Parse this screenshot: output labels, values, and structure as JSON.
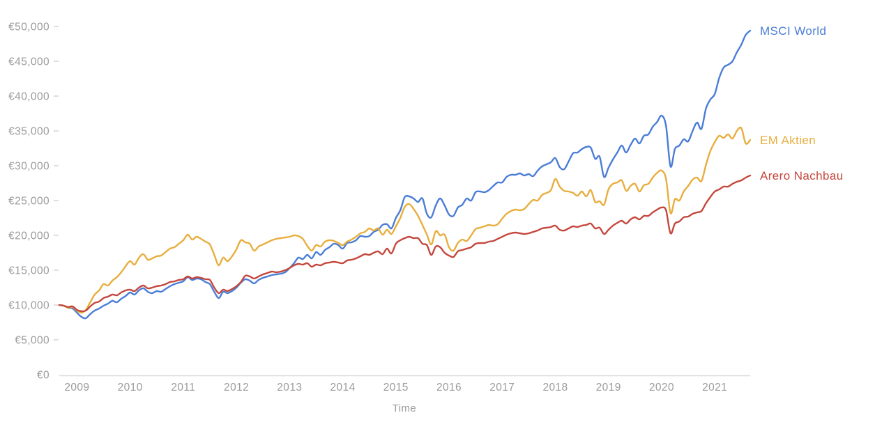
{
  "page": {
    "background": "#ffffff"
  },
  "colors": {
    "axis_line": "#dcdcdc",
    "tick_dash": "#d0d0d0",
    "tick_label_text": "#9b9b9b",
    "axis_title_text": "#9b9b9b"
  },
  "chart_data": {
    "type": "line",
    "title": "",
    "xlabel": "Time",
    "ylabel": "",
    "frequency": "monthly",
    "x_start_month": "2008-09",
    "x_end_month": "2021-09",
    "ylim": [
      0,
      50000
    ],
    "y_tick_interval": 5000,
    "grid": false,
    "legend_position": "labels-at-line-ends-right",
    "currency": "EUR",
    "y_tick_labels": [
      "€0",
      "€5,000",
      "€10,000",
      "€15,000",
      "€20,000",
      "€25,000",
      "€30,000",
      "€35,000",
      "€40,000",
      "€45,000",
      "€50,000"
    ],
    "x_tick_labels": [
      "2009",
      "2010",
      "2011",
      "2012",
      "2013",
      "2014",
      "2015",
      "2016",
      "2017",
      "2018",
      "2019",
      "2020",
      "2021"
    ],
    "series": [
      {
        "name": "MSCI World",
        "color": "#4a7dd6",
        "values": [
          10000,
          9900,
          9600,
          9500,
          8900,
          8300,
          8100,
          8700,
          9200,
          9500,
          9900,
          10200,
          10600,
          10400,
          10900,
          11300,
          11800,
          11500,
          12100,
          12400,
          11900,
          11700,
          12000,
          11900,
          12300,
          12700,
          13000,
          13200,
          13400,
          14000,
          13600,
          13800,
          13700,
          13300,
          13000,
          11900,
          11000,
          11900,
          11700,
          12000,
          12500,
          13200,
          13700,
          13500,
          13100,
          13600,
          13900,
          14100,
          14300,
          14400,
          14500,
          14700,
          15300,
          16000,
          16800,
          16600,
          17200,
          16700,
          17600,
          17200,
          17900,
          18300,
          18800,
          18600,
          18100,
          18900,
          19000,
          19300,
          19900,
          19800,
          19900,
          20500,
          20800,
          21500,
          21600,
          21000,
          22500,
          23600,
          25500,
          25600,
          25300,
          24800,
          25300,
          23100,
          22600,
          24300,
          25300,
          24300,
          23000,
          22800,
          24000,
          24400,
          25300,
          25000,
          26200,
          26300,
          26200,
          26500,
          27100,
          27600,
          27600,
          28400,
          28700,
          28700,
          28900,
          28600,
          28800,
          28500,
          29300,
          29900,
          30200,
          30500,
          31100,
          29800,
          29500,
          30600,
          31800,
          31900,
          32400,
          32700,
          32600,
          31000,
          31300,
          28400,
          29700,
          30900,
          31900,
          32900,
          31900,
          33000,
          33900,
          33200,
          34300,
          34500,
          35600,
          36300,
          37200,
          35700,
          29900,
          32400,
          32900,
          33800,
          33500,
          35000,
          36200,
          35300,
          38200,
          39500,
          40300,
          42600,
          44100,
          44500,
          45000,
          46300,
          47400,
          48800,
          49400
        ]
      },
      {
        "name": "EM Aktien",
        "color": "#e7ae3d",
        "values": [
          10000,
          9900,
          9600,
          9700,
          9200,
          8900,
          9300,
          10400,
          11500,
          12100,
          13000,
          12800,
          13500,
          14000,
          14700,
          15600,
          16300,
          15800,
          16800,
          17300,
          16500,
          16700,
          17000,
          17100,
          17600,
          18100,
          18300,
          18800,
          19300,
          20100,
          19400,
          19800,
          19500,
          19100,
          18700,
          17200,
          15700,
          16800,
          16300,
          17000,
          18000,
          19300,
          19000,
          18800,
          17800,
          18400,
          18700,
          19000,
          19300,
          19500,
          19600,
          19700,
          19800,
          20000,
          19900,
          19500,
          18500,
          17800,
          18600,
          18400,
          19100,
          19300,
          19200,
          18900,
          18600,
          19100,
          19400,
          19800,
          20300,
          20500,
          21000,
          20700,
          21000,
          20100,
          20800,
          20200,
          21300,
          22500,
          24100,
          24500,
          23800,
          22800,
          21500,
          20100,
          18700,
          20600,
          20000,
          20100,
          18300,
          17800,
          18900,
          19400,
          19200,
          20000,
          20900,
          21100,
          21300,
          21500,
          21400,
          21600,
          22400,
          23100,
          23500,
          23700,
          23600,
          23800,
          24500,
          25100,
          25000,
          25800,
          26100,
          26500,
          28100,
          27000,
          26400,
          26300,
          26100,
          25700,
          26300,
          25600,
          26500,
          24800,
          24900,
          24400,
          26600,
          27400,
          27600,
          27900,
          26400,
          27100,
          27400,
          26300,
          27200,
          27400,
          28300,
          29000,
          29300,
          28100,
          23200,
          25200,
          25000,
          26300,
          27100,
          28000,
          28300,
          27800,
          30100,
          32100,
          33400,
          34300,
          34000,
          34500,
          33900,
          35000,
          35400,
          33200,
          33700
        ]
      },
      {
        "name": "Arero Nachbau",
        "color": "#c4473d",
        "values": [
          10000,
          9900,
          9700,
          9800,
          9300,
          9100,
          9200,
          9800,
          10300,
          10500,
          11000,
          11200,
          11500,
          11400,
          11800,
          12100,
          12200,
          12000,
          12500,
          12800,
          12400,
          12500,
          12700,
          12800,
          13000,
          13300,
          13400,
          13600,
          13700,
          14100,
          13800,
          14000,
          13900,
          13700,
          13600,
          12500,
          11700,
          12200,
          12000,
          12300,
          12700,
          13300,
          14200,
          14100,
          13800,
          14100,
          14400,
          14600,
          14800,
          14700,
          14800,
          15000,
          15300,
          15700,
          15900,
          15800,
          16000,
          15500,
          15800,
          15700,
          16000,
          16100,
          16200,
          16100,
          16000,
          16400,
          16500,
          16700,
          17000,
          17300,
          17200,
          17500,
          17700,
          17300,
          18100,
          17400,
          18800,
          19300,
          19600,
          19800,
          19600,
          19600,
          18800,
          18600,
          17200,
          18400,
          18300,
          17500,
          17100,
          16900,
          17700,
          17900,
          18100,
          18300,
          18800,
          18900,
          18900,
          19100,
          19200,
          19500,
          19800,
          20100,
          20300,
          20400,
          20300,
          20200,
          20300,
          20500,
          20700,
          21000,
          21100,
          21200,
          21400,
          20800,
          20700,
          21000,
          21300,
          21200,
          21400,
          21500,
          21700,
          21000,
          21100,
          20200,
          20800,
          21400,
          21800,
          22100,
          21700,
          22300,
          22600,
          22300,
          22800,
          22800,
          23300,
          23700,
          24000,
          23600,
          20300,
          21700,
          22000,
          22600,
          22700,
          23100,
          23300,
          23500,
          24600,
          25500,
          26300,
          26600,
          27000,
          27000,
          27400,
          27700,
          27900,
          28300,
          28600
        ]
      }
    ]
  }
}
